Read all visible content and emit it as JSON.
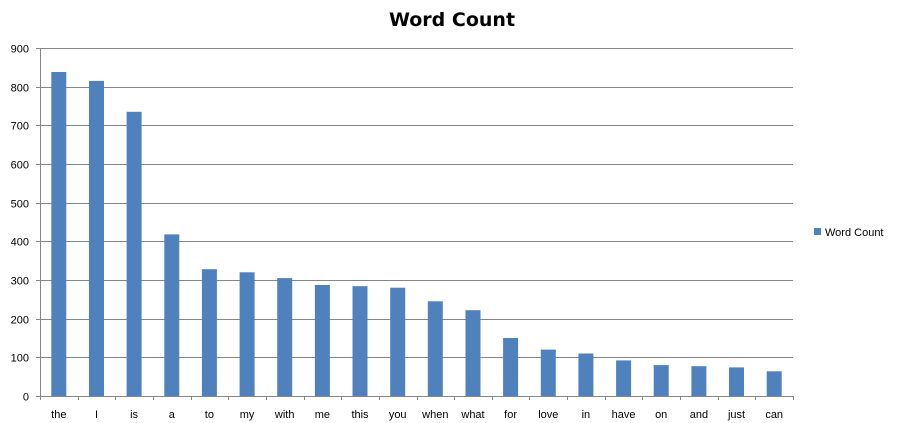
{
  "chart_data": {
    "type": "bar",
    "title": "Word Count",
    "xlabel": "",
    "ylabel": "",
    "categories": [
      "the",
      "I",
      "is",
      "a",
      "to",
      "my",
      "with",
      "me",
      "this",
      "you",
      "when",
      "what",
      "for",
      "love",
      "in",
      "have",
      "on",
      "and",
      "just",
      "can"
    ],
    "series": [
      {
        "name": "Word Count",
        "values": [
          838,
          815,
          735,
          418,
          328,
          320,
          305,
          287,
          284,
          280,
          245,
          222,
          150,
          120,
          110,
          92,
          80,
          77,
          74,
          64
        ]
      }
    ],
    "ylim": [
      0,
      900
    ],
    "yticks": [
      0,
      100,
      200,
      300,
      400,
      500,
      600,
      700,
      800,
      900
    ],
    "grid": true,
    "legend_position": "right",
    "colors": {
      "bar": "#4f81bd",
      "grid": "#868686",
      "axis": "#868686"
    }
  }
}
